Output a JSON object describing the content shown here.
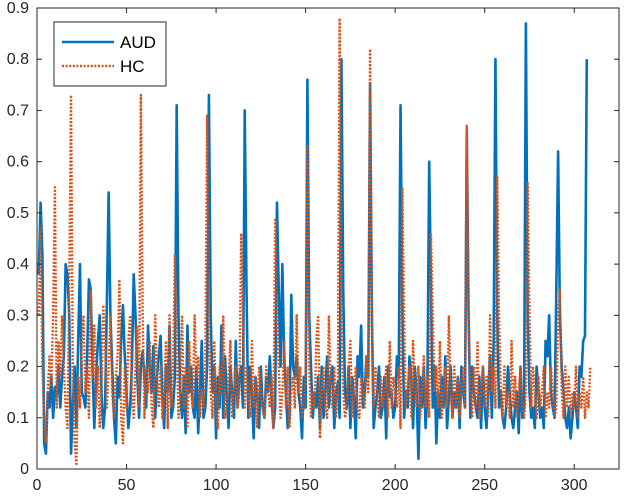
{
  "chart_data": {
    "type": "line",
    "xlim": [
      0,
      325
    ],
    "ylim": [
      0,
      0.9
    ],
    "x_ticks": [
      0,
      50,
      100,
      150,
      200,
      250,
      300
    ],
    "y_ticks": [
      0,
      0.1,
      0.2,
      0.3,
      0.4,
      0.5,
      0.6,
      0.7,
      0.8,
      0.9
    ],
    "grid": false,
    "legend_position": "top-left",
    "x_start": 1,
    "x_step": 1,
    "series": [
      {
        "name": "AUD",
        "color": "#0072BD",
        "line_style": "solid",
        "values": [
          0.38,
          0.52,
          0.42,
          0.05,
          0.03,
          0.15,
          0.12,
          0.18,
          0.1,
          0.16,
          0.14,
          0.2,
          0.12,
          0.18,
          0.22,
          0.4,
          0.38,
          0.3,
          0.03,
          0.12,
          0.2,
          0.08,
          0.25,
          0.4,
          0.15,
          0.14,
          0.12,
          0.22,
          0.37,
          0.35,
          0.2,
          0.08,
          0.18,
          0.25,
          0.3,
          0.15,
          0.08,
          0.12,
          0.32,
          0.54,
          0.3,
          0.2,
          0.1,
          0.05,
          0.18,
          0.14,
          0.25,
          0.32,
          0.22,
          0.15,
          0.08,
          0.12,
          0.2,
          0.38,
          0.3,
          0.18,
          0.1,
          0.2,
          0.23,
          0.18,
          0.12,
          0.28,
          0.2,
          0.15,
          0.24,
          0.1,
          0.18,
          0.22,
          0.26,
          0.14,
          0.08,
          0.2,
          0.15,
          0.28,
          0.1,
          0.12,
          0.18,
          0.71,
          0.3,
          0.15,
          0.1,
          0.18,
          0.07,
          0.28,
          0.15,
          0.2,
          0.12,
          0.1,
          0.2,
          0.07,
          0.15,
          0.25,
          0.1,
          0.12,
          0.2,
          0.73,
          0.3,
          0.15,
          0.2,
          0.06,
          0.18,
          0.12,
          0.28,
          0.1,
          0.22,
          0.14,
          0.08,
          0.2,
          0.15,
          0.1,
          0.25,
          0.12,
          0.18,
          0.2,
          0.12,
          0.7,
          0.35,
          0.1,
          0.2,
          0.15,
          0.06,
          0.18,
          0.14,
          0.08,
          0.2,
          0.12,
          0.1,
          0.18,
          0.15,
          0.22,
          0.14,
          0.08,
          0.12,
          0.52,
          0.35,
          0.2,
          0.4,
          0.22,
          0.15,
          0.08,
          0.1,
          0.34,
          0.2,
          0.18,
          0.22,
          0.15,
          0.12,
          0.06,
          0.18,
          0.12,
          0.76,
          0.3,
          0.2,
          0.1,
          0.15,
          0.12,
          0.18,
          0.08,
          0.2,
          0.1,
          0.15,
          0.22,
          0.12,
          0.18,
          0.2,
          0.08,
          0.15,
          0.17,
          0.1,
          0.8,
          0.35,
          0.15,
          0.12,
          0.2,
          0.08,
          0.18,
          0.14,
          0.06,
          0.22,
          0.18,
          0.28,
          0.12,
          0.15,
          0.22,
          0.18,
          0.75,
          0.3,
          0.08,
          0.12,
          0.15,
          0.2,
          0.1,
          0.12,
          0.18,
          0.06,
          0.2,
          0.14,
          0.15,
          0.1,
          0.12,
          0.22,
          0.18,
          0.71,
          0.32,
          0.1,
          0.15,
          0.12,
          0.22,
          0.18,
          0.08,
          0.2,
          0.15,
          0.02,
          0.18,
          0.12,
          0.2,
          0.08,
          0.15,
          0.6,
          0.35,
          0.12,
          0.2,
          0.05,
          0.15,
          0.1,
          0.18,
          0.12,
          0.22,
          0.08,
          0.14,
          0.2,
          0.1,
          0.15,
          0.12,
          0.18,
          0.08,
          0.2,
          0.15,
          0.12,
          0.66,
          0.3,
          0.1,
          0.2,
          0.15,
          0.12,
          0.1,
          0.18,
          0.08,
          0.2,
          0.12,
          0.08,
          0.15,
          0.22,
          0.1,
          0.25,
          0.8,
          0.3,
          0.12,
          0.15,
          0.1,
          0.08,
          0.12,
          0.2,
          0.15,
          0.1,
          0.08,
          0.12,
          0.15,
          0.07,
          0.2,
          0.1,
          0.12,
          0.87,
          0.3,
          0.15,
          0.1,
          0.12,
          0.08,
          0.2,
          0.15,
          0.1,
          0.12,
          0.08,
          0.25,
          0.22,
          0.3,
          0.15,
          0.12,
          0.1,
          0.35,
          0.62,
          0.3,
          0.2,
          0.15,
          0.1,
          0.08,
          0.12,
          0.06,
          0.1,
          0.15,
          0.12,
          0.08,
          0.2,
          0.18,
          0.25,
          0.26,
          0.8
        ]
      },
      {
        "name": "HC",
        "color": "#D95319",
        "line_style": "dotted",
        "values": [
          0.3,
          0.47,
          0.2,
          0.1,
          0.05,
          0.15,
          0.22,
          0.16,
          0.3,
          0.55,
          0.12,
          0.25,
          0.18,
          0.3,
          0.2,
          0.12,
          0.08,
          0.35,
          0.73,
          0.2,
          0.05,
          0.01,
          0.18,
          0.12,
          0.25,
          0.3,
          0.15,
          0.2,
          0.1,
          0.35,
          0.18,
          0.28,
          0.12,
          0.2,
          0.08,
          0.15,
          0.32,
          0.25,
          0.12,
          0.2,
          0.3,
          0.15,
          0.1,
          0.18,
          0.22,
          0.37,
          0.1,
          0.05,
          0.2,
          0.12,
          0.25,
          0.3,
          0.15,
          0.1,
          0.2,
          0.28,
          0.12,
          0.73,
          0.3,
          0.1,
          0.2,
          0.15,
          0.25,
          0.12,
          0.08,
          0.3,
          0.18,
          0.12,
          0.2,
          0.1,
          0.15,
          0.25,
          0.08,
          0.3,
          0.12,
          0.2,
          0.42,
          0.25,
          0.1,
          0.15,
          0.3,
          0.12,
          0.2,
          0.08,
          0.25,
          0.15,
          0.12,
          0.3,
          0.18,
          0.22,
          0.1,
          0.15,
          0.12,
          0.2,
          0.69,
          0.3,
          0.15,
          0.1,
          0.25,
          0.12,
          0.08,
          0.2,
          0.15,
          0.3,
          0.1,
          0.12,
          0.18,
          0.25,
          0.1,
          0.15,
          0.2,
          0.12,
          0.15,
          0.46,
          0.3,
          0.12,
          0.2,
          0.15,
          0.1,
          0.25,
          0.12,
          0.18,
          0.08,
          0.2,
          0.15,
          0.12,
          0.1,
          0.2,
          0.15,
          0.12,
          0.18,
          0.08,
          0.49,
          0.3,
          0.2,
          0.1,
          0.15,
          0.25,
          0.12,
          0.2,
          0.08,
          0.15,
          0.18,
          0.12,
          0.3,
          0.15,
          0.2,
          0.1,
          0.12,
          0.18,
          0.63,
          0.2,
          0.1,
          0.15,
          0.12,
          0.25,
          0.3,
          0.06,
          0.15,
          0.2,
          0.12,
          0.1,
          0.3,
          0.15,
          0.12,
          0.2,
          0.1,
          0.15,
          0.88,
          0.3,
          0.15,
          0.1,
          0.12,
          0.2,
          0.25,
          0.1,
          0.15,
          0.2,
          0.12,
          0.1,
          0.18,
          0.15,
          0.12,
          0.22,
          0.15,
          0.82,
          0.3,
          0.12,
          0.2,
          0.15,
          0.1,
          0.18,
          0.12,
          0.15,
          0.2,
          0.1,
          0.25,
          0.12,
          0.18,
          0.15,
          0.12,
          0.2,
          0.08,
          0.55,
          0.3,
          0.12,
          0.15,
          0.2,
          0.1,
          0.25,
          0.15,
          0.12,
          0.2,
          0.1,
          0.15,
          0.22,
          0.12,
          0.18,
          0.1,
          0.46,
          0.3,
          0.15,
          0.2,
          0.12,
          0.25,
          0.1,
          0.15,
          0.2,
          0.12,
          0.3,
          0.15,
          0.1,
          0.2,
          0.12,
          0.18,
          0.1,
          0.15,
          0.2,
          0.12,
          0.67,
          0.3,
          0.15,
          0.1,
          0.2,
          0.12,
          0.25,
          0.1,
          0.15,
          0.2,
          0.12,
          0.18,
          0.1,
          0.3,
          0.15,
          0.2,
          0.12,
          0.57,
          0.3,
          0.15,
          0.1,
          0.2,
          0.12,
          0.15,
          0.1,
          0.25,
          0.12,
          0.18,
          0.1,
          0.15,
          0.2,
          0.12,
          0.1,
          0.15,
          0.56,
          0.3,
          0.12,
          0.2,
          0.15,
          0.1,
          0.18,
          0.12,
          0.15,
          0.2,
          0.1,
          0.15,
          0.12,
          0.2,
          0.15,
          0.1,
          0.12,
          0.3,
          0.35,
          0.15,
          0.1,
          0.2,
          0.12,
          0.18,
          0.1,
          0.15,
          0.12,
          0.2,
          0.1,
          0.15,
          0.12,
          0.18,
          0.1,
          0.15,
          0.12,
          0.2
        ]
      }
    ]
  }
}
